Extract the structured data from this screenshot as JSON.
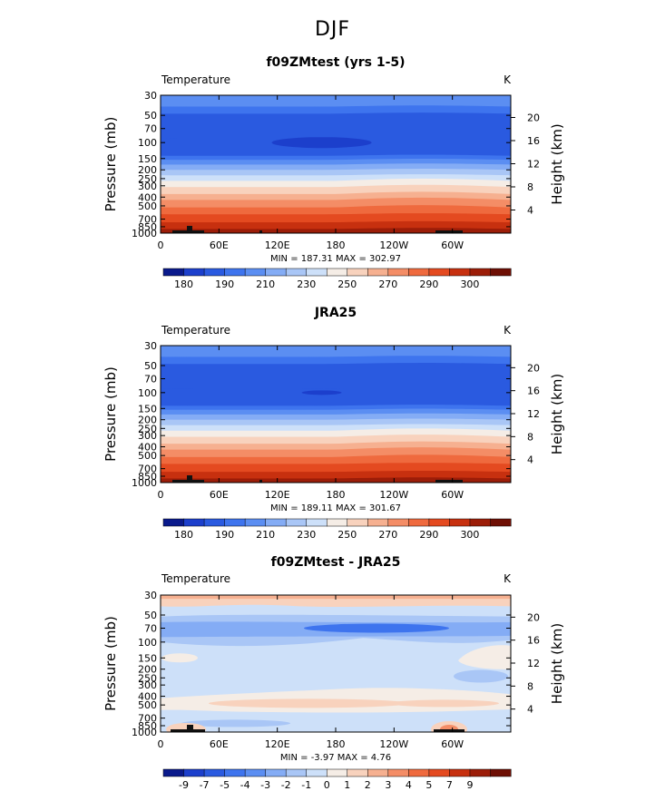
{
  "figure": {
    "title": "DJF"
  },
  "chart_data": [
    {
      "type": "heatmap",
      "title": "f09ZMtest (yrs 1-5)",
      "variable_label": "Temperature",
      "unit_label": "K",
      "ylabel": "Pressure  (mb)",
      "y2label": "Height  (km)",
      "x_ticks": [
        "0",
        "60E",
        "120E",
        "180",
        "120W",
        "60W"
      ],
      "y_ticks": [
        "30",
        "50",
        "70",
        "100",
        "150",
        "200",
        "250",
        "300",
        "400",
        "500",
        "700",
        "850",
        "1000"
      ],
      "y2_ticks": [
        "20",
        "16",
        "12",
        "8",
        "4"
      ],
      "stats": "MIN = 187.31   MAX = 302.97",
      "min": 187.31,
      "max": 302.97,
      "colorbar_labels": [
        "180",
        "190",
        "210",
        "230",
        "250",
        "270",
        "290",
        "300"
      ],
      "colorbar_colors": [
        "#0a1a8c",
        "#1c3fcc",
        "#2a5ae0",
        "#3e74ee",
        "#5b8ef2",
        "#84acf5",
        "#a9c6f6",
        "#cde0f9",
        "#f5ede6",
        "#f8d2bd",
        "#f6b090",
        "#f48d66",
        "#ef6a3e",
        "#e44a20",
        "#c7300f",
        "#9c1d08",
        "#6e0f04"
      ],
      "bands": [
        {
          "pressure": "30-50",
          "color": "#5b8ef2"
        },
        {
          "pressure": "50-150",
          "color": "#2a5ae0"
        },
        {
          "pressure": "150-200",
          "color": "#5b8ef2"
        },
        {
          "pressure": "200-250",
          "color": "#a9c6f6"
        },
        {
          "pressure": "250-300",
          "color": "#cde0f9"
        },
        {
          "pressure": "300-400",
          "color": "#f8d2bd"
        },
        {
          "pressure": "400-500",
          "color": "#f6b090"
        },
        {
          "pressure": "500-700",
          "color": "#ef6a3e"
        },
        {
          "pressure": "700-1000",
          "color": "#e44a20"
        }
      ]
    },
    {
      "type": "heatmap",
      "title": "JRA25",
      "variable_label": "Temperature",
      "unit_label": "K",
      "ylabel": "Pressure  (mb)",
      "y2label": "Height  (km)",
      "x_ticks": [
        "0",
        "60E",
        "120E",
        "180",
        "120W",
        "60W"
      ],
      "y_ticks": [
        "30",
        "50",
        "70",
        "100",
        "150",
        "200",
        "250",
        "300",
        "400",
        "500",
        "700",
        "850",
        "1000"
      ],
      "y2_ticks": [
        "20",
        "16",
        "12",
        "8",
        "4"
      ],
      "stats": "MIN = 189.11   MAX = 301.67",
      "min": 189.11,
      "max": 301.67,
      "colorbar_labels": [
        "180",
        "190",
        "210",
        "230",
        "250",
        "270",
        "290",
        "300"
      ],
      "colorbar_colors": [
        "#0a1a8c",
        "#1c3fcc",
        "#2a5ae0",
        "#3e74ee",
        "#5b8ef2",
        "#84acf5",
        "#a9c6f6",
        "#cde0f9",
        "#f5ede6",
        "#f8d2bd",
        "#f6b090",
        "#f48d66",
        "#ef6a3e",
        "#e44a20",
        "#c7300f",
        "#9c1d08",
        "#6e0f04"
      ]
    },
    {
      "type": "heatmap",
      "title": "f09ZMtest - JRA25",
      "variable_label": "Temperature",
      "unit_label": "K",
      "ylabel": "Pressure  (mb)",
      "y2label": "Height  (km)",
      "x_ticks": [
        "0",
        "60E",
        "120E",
        "180",
        "120W",
        "60W"
      ],
      "y_ticks": [
        "30",
        "50",
        "70",
        "100",
        "150",
        "200",
        "250",
        "300",
        "400",
        "500",
        "700",
        "850",
        "1000"
      ],
      "y2_ticks": [
        "20",
        "16",
        "12",
        "8",
        "4"
      ],
      "stats": "MIN =  -3.97   MAX =   4.76",
      "min": -3.97,
      "max": 4.76,
      "colorbar_labels": [
        "-9",
        "-7",
        "-5",
        "-4",
        "-3",
        "-2",
        "-1",
        "0",
        "1",
        "2",
        "3",
        "4",
        "5",
        "7",
        "9"
      ],
      "colorbar_colors": [
        "#0a1a8c",
        "#1c3fcc",
        "#2a5ae0",
        "#3e74ee",
        "#5b8ef2",
        "#84acf5",
        "#a9c6f6",
        "#cde0f9",
        "#f5ede6",
        "#f8d2bd",
        "#f6b090",
        "#f48d66",
        "#ef6a3e",
        "#e44a20",
        "#c7300f",
        "#9c1d08",
        "#6e0f04"
      ]
    }
  ]
}
